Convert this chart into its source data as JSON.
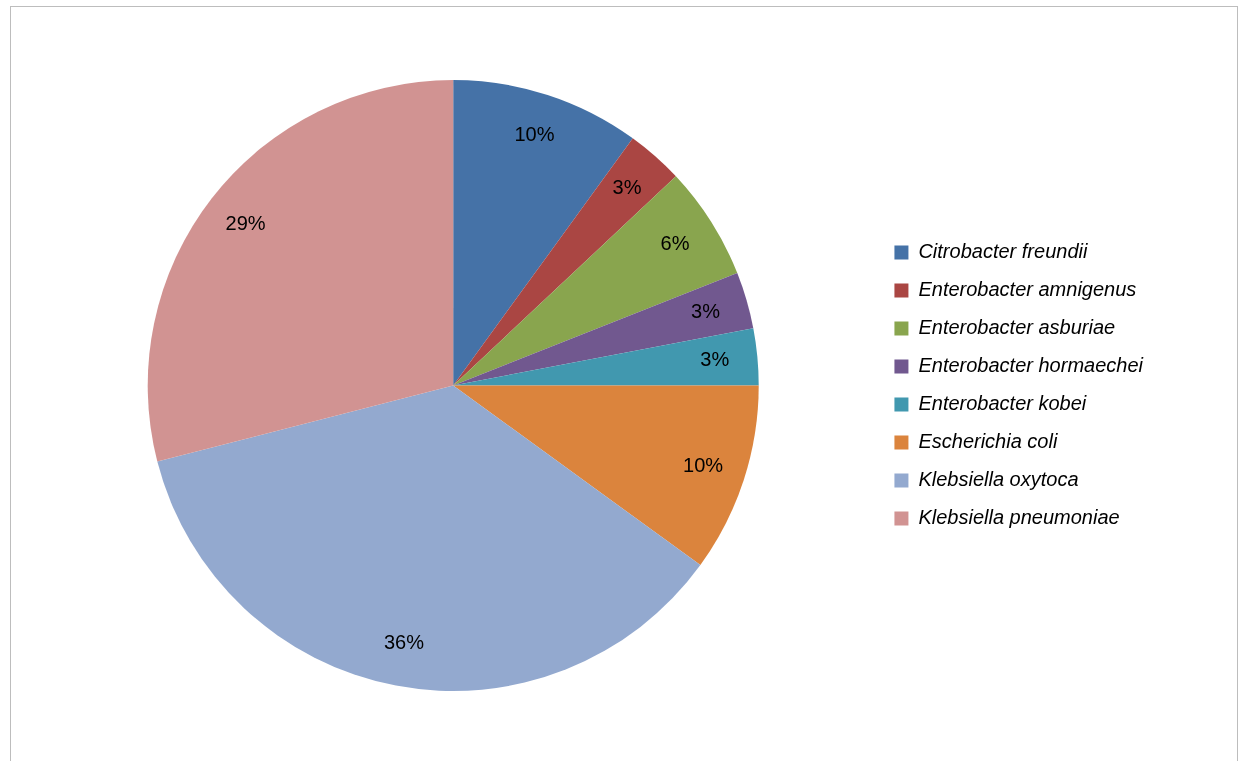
{
  "chart_data": {
    "type": "pie",
    "categories": [
      "Citrobacter freundii",
      "Enterobacter amnigenus",
      "Enterobacter asburiae",
      "Enterobacter hormaechei",
      "Enterobacter kobei",
      "Escherichia coli",
      "Klebsiella oxytoca",
      "Klebsiella pneumoniae"
    ],
    "values": [
      10,
      3,
      6,
      3,
      3,
      10,
      36,
      29
    ],
    "colors": [
      "#4572a7",
      "#aa4643",
      "#89a54e",
      "#71588f",
      "#4198af",
      "#db843d",
      "#93a9cf",
      "#d19392"
    ],
    "value_labels": [
      "10%",
      "3%",
      "6%",
      "3%",
      "3%",
      "10%",
      "36%",
      "29%"
    ],
    "legend": "right"
  }
}
